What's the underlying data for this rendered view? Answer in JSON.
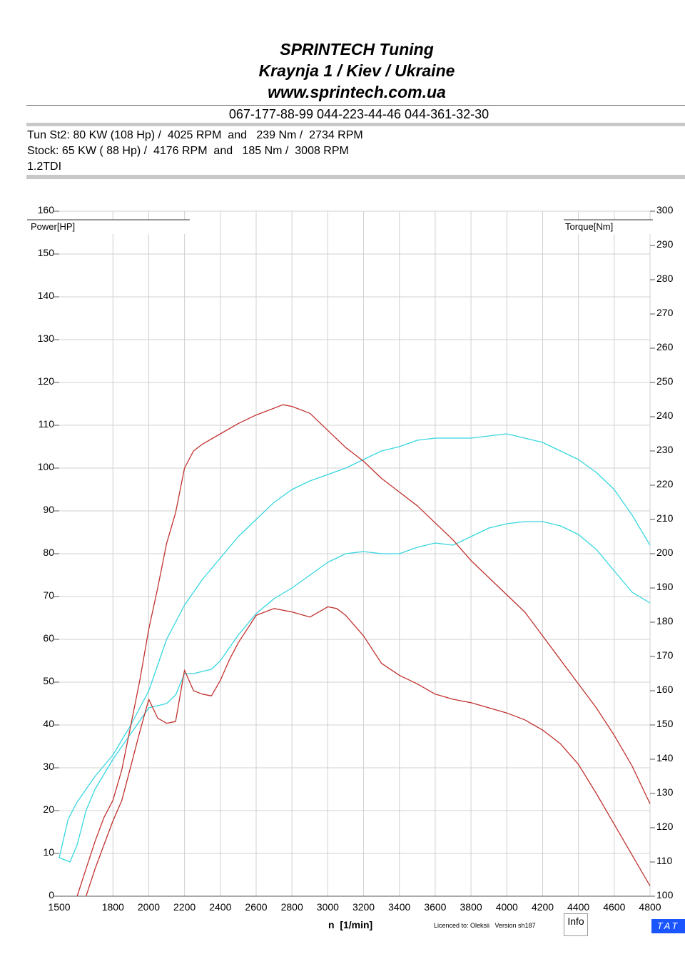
{
  "header": {
    "line1": "SPRINTECH Tuning",
    "line2": "Kraynja 1 / Kiev / Ukraine",
    "line3": "www.sprintech.com.ua",
    "phones": "067-177-88-99 044-223-44-46 044-361-32-30"
  },
  "specs": {
    "tuned": "Tun St2: 80 KW (108 Hp) /  4025 RPM  and   239 Nm /  2734 RPM",
    "stock": "Stock: 65 KW ( 88 Hp) /  4176 RPM  and   185 Nm /  3008 RPM",
    "engine": "1.2TDI"
  },
  "footer": {
    "licence": "Licenced to: Oleksii   Version sh187",
    "info_label": "Info",
    "tat_label": "TAT"
  },
  "colors": {
    "power": "#36d6e0",
    "torque": "#c0322e",
    "grid": "#d0d0d0",
    "accent": "#1a55ff"
  },
  "chart_data": {
    "type": "line",
    "xlabel": "n  [1/min]",
    "ylabel_left": "Power[HP]",
    "ylabel_right": "Torque[Nm]",
    "xlim": [
      1500,
      4800
    ],
    "ylim_left": [
      0,
      160
    ],
    "ylim_right": [
      100,
      300
    ],
    "x_ticks": [
      1500,
      1800,
      2000,
      2200,
      2400,
      2600,
      2800,
      3000,
      3200,
      3400,
      3600,
      3800,
      4000,
      4200,
      4400,
      4600,
      4800
    ],
    "y_ticks_left": [
      0,
      10,
      20,
      30,
      40,
      50,
      60,
      70,
      80,
      90,
      100,
      110,
      120,
      130,
      140,
      150,
      160
    ],
    "y_ticks_right": [
      100,
      110,
      120,
      130,
      140,
      150,
      160,
      170,
      180,
      190,
      200,
      210,
      220,
      230,
      240,
      250,
      260,
      270,
      280,
      290,
      300
    ],
    "grid": true,
    "series": [
      {
        "axis": "left",
        "color": "#36d6e0",
        "x": [
          1500,
          1550,
          1600,
          1700,
          1800,
          1900,
          2000,
          2100,
          2200,
          2300,
          2400,
          2500,
          2600,
          2700,
          2800,
          2900,
          3000,
          3100,
          3200,
          3300,
          3400,
          3500,
          3600,
          3700,
          3800,
          3900,
          4000,
          4100,
          4200,
          4300,
          4400,
          4500,
          4600,
          4700,
          4800
        ],
        "y": [
          9,
          18,
          22,
          28,
          33,
          40,
          48,
          60,
          68,
          74,
          79,
          84,
          88,
          92,
          95,
          97,
          98.5,
          100,
          102,
          104,
          105,
          106.5,
          107,
          107,
          107,
          107.5,
          108,
          107,
          106,
          104,
          102,
          99,
          95,
          89,
          82
        ]
      },
      {
        "axis": "left",
        "color": "#36d6e0",
        "x": [
          1500,
          1560,
          1600,
          1650,
          1700,
          1800,
          1900,
          2000,
          2050,
          2100,
          2150,
          2200,
          2250,
          2300,
          2350,
          2400,
          2500,
          2600,
          2700,
          2800,
          2900,
          3000,
          3100,
          3200,
          3300,
          3400,
          3500,
          3600,
          3700,
          3800,
          3900,
          4000,
          4100,
          4200,
          4300,
          4400,
          4500,
          4600,
          4700,
          4800
        ],
        "y": [
          9,
          8,
          12,
          20,
          25,
          32,
          38,
          44,
          44.5,
          45,
          47,
          52,
          52,
          52.5,
          53,
          55,
          61,
          66,
          69.5,
          72,
          75,
          78,
          80,
          80.5,
          80,
          80,
          81.5,
          82.5,
          82,
          84,
          86,
          87,
          87.5,
          87.5,
          86.5,
          84.5,
          81,
          76,
          71,
          68.5
        ]
      },
      {
        "axis": "right",
        "color": "#c0322e",
        "x": [
          1600,
          1650,
          1700,
          1750,
          1800,
          1850,
          1900,
          1950,
          2000,
          2050,
          2100,
          2150,
          2200,
          2250,
          2300,
          2400,
          2500,
          2600,
          2700,
          2750,
          2800,
          2900,
          3000,
          3100,
          3200,
          3300,
          3400,
          3500,
          3600,
          3700,
          3800,
          3900,
          4000,
          4100,
          4200,
          4300,
          4400,
          4500,
          4600,
          4700,
          4800
        ],
        "y": [
          100,
          108,
          116,
          123,
          128,
          137,
          150,
          163,
          178,
          190,
          203,
          212,
          225,
          230,
          232,
          235,
          238,
          240.5,
          242.5,
          243.5,
          243,
          241,
          236,
          231,
          227,
          222,
          218,
          214,
          209,
          204,
          198,
          193,
          188,
          183,
          176,
          169,
          162,
          155,
          147,
          138,
          127
        ]
      },
      {
        "axis": "right",
        "color": "#c0322e",
        "x": [
          1650,
          1700,
          1750,
          1800,
          1850,
          1900,
          1950,
          2000,
          2050,
          2100,
          2150,
          2200,
          2250,
          2300,
          2350,
          2400,
          2450,
          2500,
          2600,
          2700,
          2800,
          2900,
          3000,
          3050,
          3100,
          3200,
          3300,
          3400,
          3500,
          3600,
          3700,
          3800,
          3900,
          4000,
          4100,
          4200,
          4300,
          4400,
          4500,
          4600,
          4700,
          4800
        ],
        "y": [
          100,
          108,
          115,
          122,
          128,
          138,
          148,
          157.5,
          152,
          150.5,
          151,
          166,
          160,
          159,
          158.5,
          163,
          169,
          174,
          182,
          184,
          183,
          181.5,
          184.5,
          184,
          182,
          176,
          168,
          164.5,
          162,
          159,
          157.5,
          156.5,
          155,
          153.5,
          151.5,
          148.5,
          144.5,
          138.5,
          130,
          121,
          112,
          103
        ]
      }
    ]
  }
}
